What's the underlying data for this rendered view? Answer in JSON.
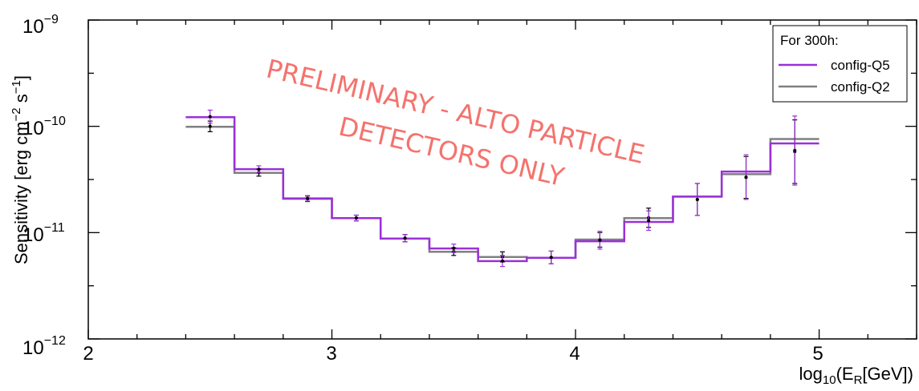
{
  "chart_data": {
    "type": "line",
    "title": "",
    "xlabel": "log10(ER[GeV])",
    "ylabel": "Sensitivity [erg cm−2 s−1]",
    "xlim": [
      2,
      5.4
    ],
    "ylim": [
      1e-12,
      1e-09
    ],
    "y_scale": "log",
    "grid": false,
    "x_tick_labels": [
      "2",
      "3",
      "4",
      "5"
    ],
    "y_tick_labels": [
      {
        "base": "10",
        "exp": "−9",
        "value": 1e-09
      },
      {
        "base": "10",
        "exp": "−10",
        "value": 1e-10
      },
      {
        "base": "10",
        "exp": "−11",
        "value": 1e-11
      },
      {
        "base": "10",
        "exp": "−12",
        "value": 1e-12
      }
    ],
    "legend": {
      "title": "For 300h:",
      "position": "top-right",
      "entries": [
        "config-Q5",
        "config-Q2"
      ]
    },
    "bin_edges": [
      2.4,
      2.6,
      2.8,
      3.0,
      3.2,
      3.4,
      3.6,
      3.8,
      4.0,
      4.2,
      4.4,
      4.6,
      4.8,
      5.0
    ],
    "series": [
      {
        "name": "config-Q5",
        "color": "#9b30d9",
        "values": [
          1.22e-10,
          3.95e-11,
          2.1e-11,
          1.37e-11,
          8.8e-12,
          7.1e-12,
          5.4e-12,
          5.8e-12,
          8.3e-12,
          1.26e-11,
          2.18e-11,
          3.75e-11,
          6.9e-11
        ],
        "errors": [
          [
            1.07e-10,
            1.42e-10
          ],
          [
            3.65e-11,
            4.25e-11
          ],
          [
            1.98e-11,
            2.23e-11
          ],
          [
            1.29e-11,
            1.46e-11
          ],
          [
            8.2e-12,
            9.6e-12
          ],
          [
            6.5e-12,
            7.8e-12
          ],
          [
            4.8e-12,
            6.1e-12
          ],
          [
            5.1e-12,
            6.7e-12
          ],
          [
            7e-12,
            1.03e-11
          ],
          [
            1.05e-11,
            1.6e-11
          ],
          [
            1.45e-11,
            2.9e-11
          ],
          [
            2.05e-11,
            5.4e-11
          ],
          [
            2.8e-11,
            1.25e-10
          ]
        ]
      },
      {
        "name": "config-Q2",
        "color": "#808080",
        "values": [
          9.9e-11,
          3.65e-11,
          2.08e-11,
          1.37e-11,
          8.8e-12,
          6.6e-12,
          5.9e-12,
          5.8e-12,
          8.6e-12,
          1.37e-11,
          2.18e-11,
          3.55e-11,
          7.6e-11
        ],
        "errors": [
          [
            8.9e-11,
            1.12e-10
          ],
          [
            3.4e-11,
            3.95e-11
          ],
          [
            1.96e-11,
            2.21e-11
          ],
          [
            1.29e-11,
            1.46e-11
          ],
          [
            8.2e-12,
            9.6e-12
          ],
          [
            6.1e-12,
            7.2e-12
          ],
          [
            5.3e-12,
            6.6e-12
          ],
          [
            5.1e-12,
            6.7e-12
          ],
          [
            7.3e-12,
            1e-11
          ],
          [
            1.12e-11,
            1.7e-11
          ],
          [
            1.45e-11,
            2.9e-11
          ],
          [
            2.1e-11,
            5.2e-11
          ],
          [
            2.9e-11,
            1.15e-10
          ]
        ]
      }
    ],
    "watermark": [
      "PRELIMINARY - ALTO PARTICLE",
      "DETECTORS ONLY"
    ],
    "watermark_color": "#f4736e"
  }
}
